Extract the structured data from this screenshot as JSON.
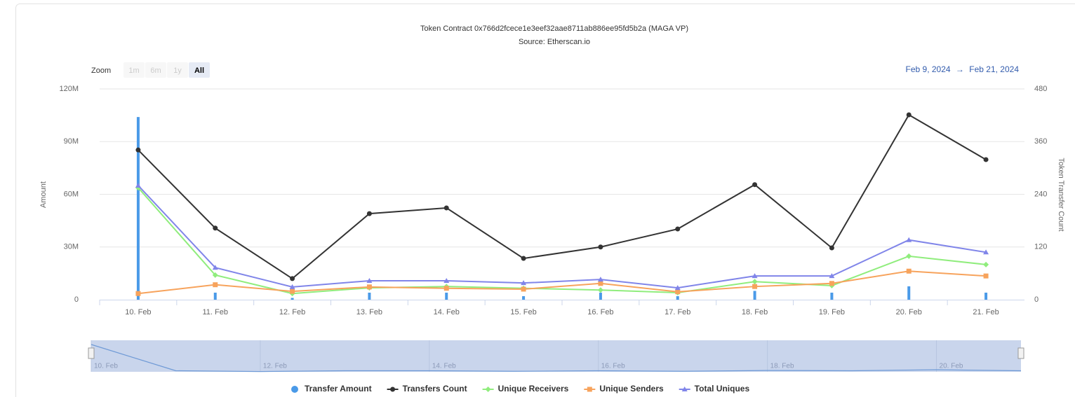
{
  "chart_data": {
    "type": "combo",
    "title": "Token Contract 0x766d2fcece1e3eef32aae8711ab886ee95fd5b2a (MAGA VP)",
    "subtitle": "Source: Etherscan.io",
    "zoom": {
      "label": "Zoom",
      "buttons": [
        "1m",
        "6m",
        "1y",
        "All"
      ],
      "selected": 3
    },
    "range": {
      "from": "Feb 9, 2024",
      "arrow": "→",
      "to": "Feb 21, 2024"
    },
    "y_label": "Amount",
    "y2_label": "Token Transfer Count",
    "categories": [
      "10. Feb",
      "11. Feb",
      "12. Feb",
      "13. Feb",
      "14. Feb",
      "15. Feb",
      "16. Feb",
      "17. Feb",
      "18. Feb",
      "19. Feb",
      "20. Feb",
      "21. Feb"
    ],
    "ylim": [
      0,
      120000000
    ],
    "yticks": [
      0,
      {
        "value": 30000000,
        "label": "30M"
      },
      {
        "value": 60000000,
        "label": "60M"
      },
      {
        "value": 90000000,
        "label": "90M"
      },
      {
        "value": 120000000,
        "label": "120M"
      }
    ],
    "y2lim": [
      0,
      480
    ],
    "y2ticks": [
      0,
      120,
      240,
      360,
      480
    ],
    "grid": true,
    "legend": "bottom",
    "series": [
      {
        "name": "Transfer Amount",
        "type": "column",
        "color": "#4a9ae8",
        "marker": "circle",
        "values": [
          104000000,
          4000000,
          1000000,
          4000000,
          4000000,
          2000000,
          4000000,
          2000000,
          5000000,
          4000000,
          7600000,
          4000000
        ]
      },
      {
        "name": "Transfers Count",
        "type": "line",
        "axis": "y2",
        "color": "#333333",
        "marker": "circle",
        "values": [
          341,
          163,
          48,
          196,
          209,
          94,
          120,
          161,
          262,
          118,
          421,
          319
        ]
      },
      {
        "name": "Unique Receivers",
        "type": "line",
        "axis": "y2",
        "color": "#90ed7d",
        "marker": "diamond",
        "values": [
          255,
          56,
          14,
          27,
          30,
          26,
          22,
          16,
          41,
          32,
          99,
          80
        ]
      },
      {
        "name": "Unique Senders",
        "type": "line",
        "axis": "y2",
        "color": "#f7a35c",
        "marker": "square",
        "values": [
          14,
          34,
          19,
          29,
          26,
          24,
          37,
          18,
          30,
          37,
          65,
          54
        ]
      },
      {
        "name": "Total Uniques",
        "type": "line",
        "axis": "y2",
        "color": "#8085e9",
        "marker": "triangle",
        "values": [
          260,
          73,
          29,
          43,
          43,
          38,
          46,
          27,
          54,
          54,
          136,
          108
        ]
      }
    ]
  }
}
